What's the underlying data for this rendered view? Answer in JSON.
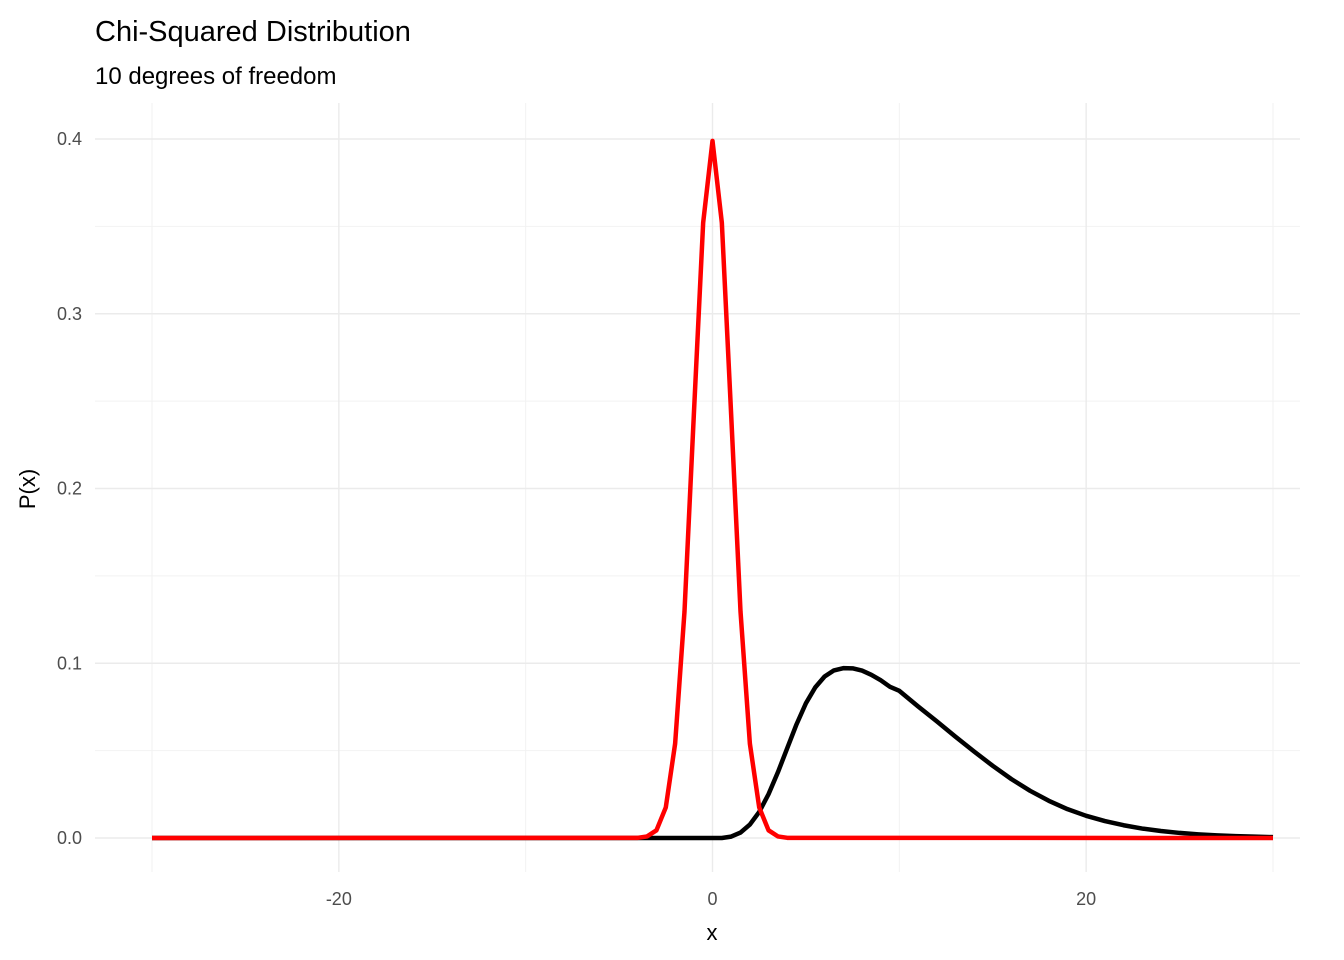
{
  "chart_data": {
    "type": "line",
    "title": "Chi-Squared Distribution",
    "subtitle": "10 degrees of freedom",
    "xlabel": "x",
    "ylabel": "P(x)",
    "xlim": [
      -30,
      30
    ],
    "ylim": [
      0,
      0.4
    ],
    "x_ticks": [
      -20,
      0,
      20
    ],
    "x_tick_labels": [
      "-20",
      "0",
      "20"
    ],
    "y_ticks": [
      0,
      0.1,
      0.2,
      0.3,
      0.4
    ],
    "y_tick_labels": [
      "0.0",
      "0.1",
      "0.2",
      "0.3",
      "0.4"
    ],
    "grid": true,
    "series": [
      {
        "color": "#000000",
        "x": [
          -30,
          -4,
          -3,
          -2,
          -1,
          0,
          0.5,
          1,
          1.5,
          2,
          2.5,
          3,
          3.5,
          4,
          4.5,
          5,
          5.5,
          6,
          6.5,
          7,
          7.5,
          8,
          8.5,
          9,
          9.5,
          10,
          11,
          12,
          13,
          14,
          15,
          16,
          17,
          18,
          19,
          20,
          21,
          22,
          23,
          24,
          25,
          26,
          27,
          28,
          29,
          30
        ],
        "y": [
          0,
          0,
          0,
          0,
          0,
          0,
          1e-05,
          0.0008,
          0.0031,
          0.0077,
          0.0149,
          0.0251,
          0.0376,
          0.0514,
          0.0651,
          0.0771,
          0.0862,
          0.0924,
          0.0959,
          0.0972,
          0.0971,
          0.0958,
          0.0934,
          0.0903,
          0.0865,
          0.0842,
          0.0753,
          0.0668,
          0.058,
          0.0495,
          0.0413,
          0.0337,
          0.027,
          0.0213,
          0.0165,
          0.0127,
          0.0097,
          0.0073,
          0.0054,
          0.004,
          0.0029,
          0.0021,
          0.0015,
          0.0011,
          0.0008,
          0.0005
        ]
      },
      {
        "color": "#ff0000",
        "x": [
          -30,
          -4,
          -3.5,
          -3,
          -2.5,
          -2,
          -1.5,
          -1,
          -0.5,
          0,
          0.5,
          1,
          1.5,
          2,
          2.5,
          3,
          3.5,
          4,
          30
        ],
        "y": [
          0,
          0.0001,
          0.0009,
          0.0044,
          0.0175,
          0.054,
          0.1295,
          0.242,
          0.3521,
          0.3989,
          0.3521,
          0.242,
          0.1295,
          0.054,
          0.0175,
          0.0044,
          0.0009,
          0.0001,
          0
        ]
      }
    ]
  }
}
